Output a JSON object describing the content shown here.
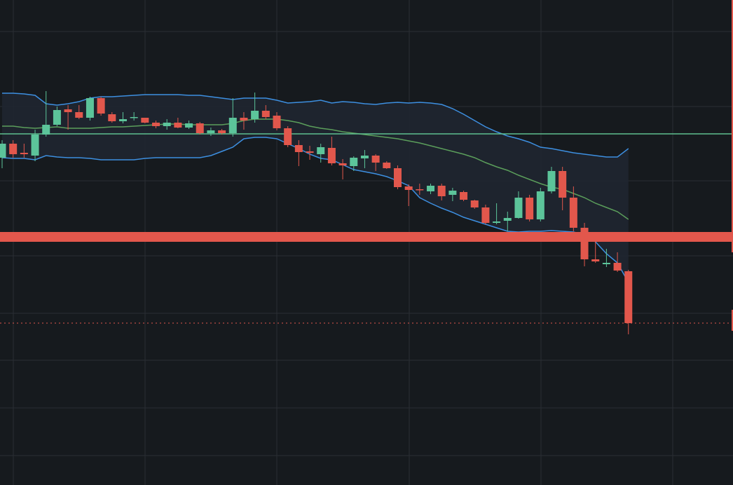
{
  "chart_data": {
    "type": "candlestick",
    "ylim": [
      0,
      692
    ],
    "up_color": "#5cc49a",
    "down_color": "#e2574c",
    "open": [
      467,
      487,
      474,
      470,
      500,
      514,
      536,
      532,
      524,
      552,
      529,
      519,
      524,
      524,
      517,
      512,
      517,
      510,
      516,
      502,
      506,
      502,
      524,
      522,
      534,
      527,
      509,
      485,
      476,
      472,
      481,
      459,
      455,
      466,
      470,
      460,
      452,
      426,
      422,
      419,
      427,
      414,
      418,
      406,
      396,
      374,
      377,
      381,
      410,
      379,
      419,
      448,
      410,
      367,
      322,
      315,
      317,
      305
    ],
    "high": [
      492,
      492,
      487,
      507,
      562,
      540,
      542,
      542,
      554,
      554,
      532,
      532,
      532,
      524,
      520,
      522,
      524,
      520,
      518,
      510,
      508,
      552,
      532,
      560,
      542,
      532,
      512,
      492,
      484,
      487,
      497,
      465,
      469,
      478,
      472,
      462,
      456,
      429,
      430,
      430,
      430,
      424,
      420,
      407,
      400,
      402,
      390,
      419,
      414,
      424,
      454,
      454,
      426,
      374,
      347,
      337,
      332,
      307
    ],
    "low": [
      452,
      467,
      467,
      462,
      497,
      512,
      507,
      522,
      520,
      527,
      517,
      516,
      520,
      516,
      509,
      507,
      509,
      508,
      500,
      498,
      500,
      497,
      507,
      517,
      522,
      506,
      482,
      455,
      464,
      460,
      456,
      436,
      448,
      452,
      448,
      451,
      422,
      398,
      414,
      415,
      406,
      405,
      405,
      394,
      372,
      372,
      362,
      380,
      376,
      376,
      416,
      392,
      362,
      312,
      317,
      311,
      304,
      215
    ],
    "close": [
      487,
      472,
      472,
      500,
      514,
      535,
      532,
      524,
      552,
      530,
      519,
      522,
      525,
      517,
      512,
      517,
      510,
      516,
      502,
      506,
      502,
      524,
      520,
      534,
      525,
      509,
      485,
      475,
      474,
      482,
      459,
      456,
      467,
      470,
      460,
      452,
      425,
      421,
      421,
      427,
      412,
      420,
      407,
      396,
      374,
      376,
      381,
      410,
      379,
      419,
      448,
      410,
      367,
      322,
      319,
      317,
      306,
      231
    ],
    "bands": {
      "fill": "#1f2630",
      "line_color": "#3d8fe0",
      "middle_color": "#5b9e5b",
      "upper": [
        559,
        559,
        558,
        556,
        544,
        542,
        544,
        547,
        552,
        554,
        554,
        555,
        556,
        557,
        557,
        557,
        557,
        556,
        556,
        554,
        552,
        550,
        552,
        552,
        552,
        549,
        545,
        546,
        547,
        549,
        545,
        547,
        546,
        544,
        543,
        545,
        546,
        545,
        546,
        545,
        543,
        537,
        529,
        520,
        511,
        504,
        498,
        494,
        489,
        482,
        480,
        477,
        474,
        472,
        470,
        468,
        468,
        480
      ],
      "middle": [
        512,
        512,
        510,
        509,
        510,
        511,
        509,
        509,
        509,
        510,
        511,
        511,
        512,
        513,
        514,
        515,
        515,
        514,
        514,
        514,
        514,
        516,
        520,
        522,
        522,
        522,
        520,
        517,
        512,
        509,
        507,
        504,
        502,
        500,
        498,
        496,
        494,
        491,
        488,
        484,
        480,
        476,
        472,
        467,
        460,
        454,
        449,
        442,
        436,
        430,
        425,
        422,
        416,
        410,
        402,
        396,
        390,
        379
      ],
      "lower": [
        467,
        466,
        466,
        464,
        470,
        468,
        467,
        467,
        466,
        464,
        464,
        464,
        464,
        466,
        467,
        467,
        467,
        467,
        467,
        470,
        476,
        482,
        494,
        496,
        496,
        494,
        487,
        480,
        472,
        466,
        464,
        457,
        450,
        447,
        444,
        440,
        434,
        427,
        410,
        402,
        395,
        389,
        382,
        377,
        372,
        367,
        362,
        361,
        362,
        362,
        363,
        362,
        361,
        357,
        347,
        330,
        317,
        289
      ]
    },
    "levels": [
      {
        "value": 501,
        "color": "#5fbf8f"
      },
      {
        "value": 354,
        "color": "#e2574c"
      },
      {
        "value": 231,
        "color": "#e2574c"
      }
    ]
  }
}
